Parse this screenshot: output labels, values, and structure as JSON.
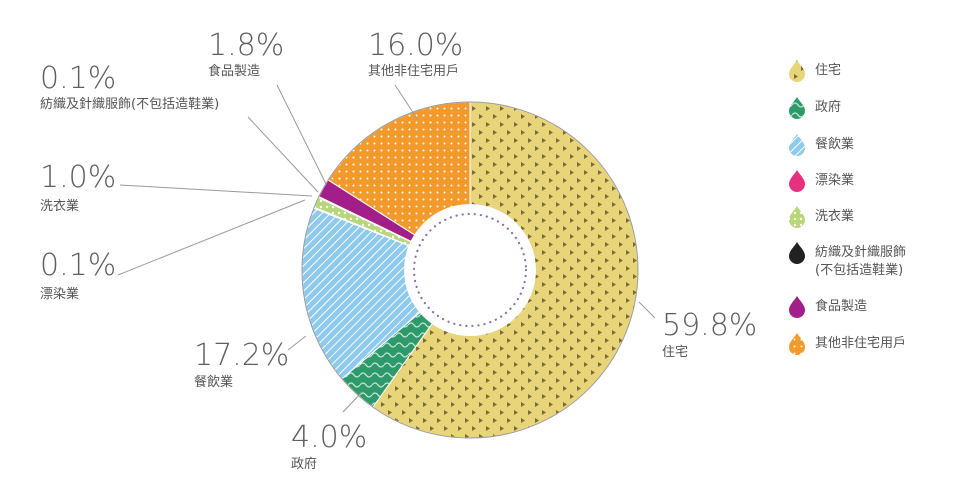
{
  "chart_data": {
    "type": "pie",
    "categories": [
      "住宅",
      "政府",
      "餐飲業",
      "漂染業",
      "洗衣業",
      "紡織及針織服飾(不包括造鞋業)",
      "食品製造",
      "其他非住宅用戶"
    ],
    "values": [
      59.8,
      4.0,
      17.2,
      0.1,
      1.0,
      0.1,
      1.8,
      16.0
    ],
    "value_labels": [
      "59.8%",
      "4.0%",
      "17.2%",
      "0.1%",
      "1.0%",
      "0.1%",
      "1.8%",
      "16.0%"
    ],
    "slice_labels": [
      "住宅",
      "政府",
      "餐飲業",
      "漂染業",
      "洗衣業",
      "紡織及針織服飾(不包括造鞋業)",
      "食品製造",
      "其他非住宅用戶"
    ],
    "legend_lines": [
      [
        "住宅"
      ],
      [
        "政府"
      ],
      [
        "餐飲業"
      ],
      [
        "漂染業"
      ],
      [
        "洗衣業"
      ],
      [
        "紡織及針織服飾",
        "(不包括造鞋業)"
      ],
      [
        "食品製造"
      ],
      [
        "其他非住宅用戶"
      ]
    ],
    "colors": [
      "#e8d57a",
      "#2e9a6c",
      "#8ec9ee",
      "#e6317e",
      "#b7d77a",
      "#222222",
      "#a21f8a",
      "#f39a2c"
    ],
    "icons": [
      "dotted-drop",
      "wavy-drop",
      "striped-drop",
      "solid-drop",
      "dotted-drop",
      "solid-drop",
      "solid-drop",
      "dotted-drop"
    ],
    "legend_position": "right",
    "donut": true
  }
}
